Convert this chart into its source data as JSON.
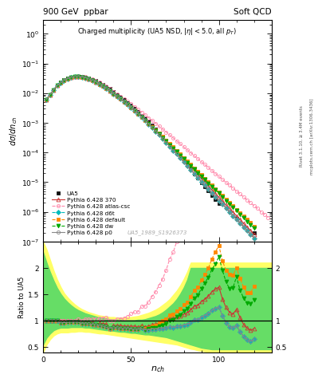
{
  "title_left": "900 GeV  ppbar",
  "title_right": "Soft QCD",
  "plot_title": "Charged multiplicity (UA5 NSD, |\\eta| < 5.0, all p_{T})",
  "ylabel_main": "d\\sigma/dn_{ch}",
  "ylabel_ratio": "Ratio to UA5",
  "xlabel": "n_{ch}",
  "watermark": "UA5_1989_S1926373",
  "right_label1": "Rivet 3.1.10, ≥ 3.4M events",
  "right_label2": "mcplots.cern.ch [arXiv:1306.3436]",
  "ylim_main": [
    1e-07,
    3.0
  ],
  "xlim": [
    0,
    130
  ],
  "series": [
    {
      "label": "UA5",
      "color": "#111111",
      "marker": "s",
      "ms": 3.5,
      "linestyle": "none",
      "filled": true,
      "lw": 0.8,
      "x": [
        2,
        4,
        6,
        8,
        10,
        12,
        14,
        16,
        18,
        20,
        22,
        24,
        26,
        28,
        30,
        32,
        34,
        36,
        38,
        40,
        42,
        44,
        46,
        48,
        50,
        52,
        54,
        56,
        58,
        60,
        62,
        64,
        66,
        68,
        70,
        72,
        74,
        76,
        78,
        80,
        82,
        84,
        86,
        88,
        90,
        92,
        94,
        96,
        98,
        100,
        110,
        120
      ],
      "y": [
        0.0062,
        0.009,
        0.013,
        0.018,
        0.023,
        0.028,
        0.032,
        0.035,
        0.037,
        0.037,
        0.037,
        0.035,
        0.032,
        0.029,
        0.026,
        0.022,
        0.019,
        0.016,
        0.014,
        0.011,
        0.009,
        0.0074,
        0.006,
        0.0048,
        0.0038,
        0.003,
        0.0024,
        0.0018,
        0.00145,
        0.0011,
        0.00082,
        0.00062,
        0.00046,
        0.00034,
        0.00025,
        0.00018,
        0.000135,
        9.8e-05,
        7.2e-05,
        5.2e-05,
        3.8e-05,
        2.7e-05,
        1.9e-05,
        1.4e-05,
        9.9e-06,
        7.1e-06,
        5.1e-06,
        3.6e-06,
        2.6e-06,
        1.9e-06,
        6e-07,
        2e-07
      ]
    },
    {
      "label": "Pythia 6.428 370",
      "color": "#CC3333",
      "marker": "^",
      "ms": 3.5,
      "linestyle": "-",
      "filled": false,
      "lw": 0.8,
      "x": [
        2,
        4,
        6,
        8,
        10,
        12,
        14,
        16,
        18,
        20,
        22,
        24,
        26,
        28,
        30,
        32,
        34,
        36,
        38,
        40,
        42,
        44,
        46,
        48,
        50,
        52,
        54,
        56,
        58,
        60,
        62,
        64,
        66,
        68,
        70,
        72,
        74,
        76,
        78,
        80,
        82,
        84,
        86,
        88,
        90,
        92,
        94,
        96,
        98,
        100,
        102,
        104,
        106,
        108,
        110,
        112,
        114,
        116,
        118,
        120
      ],
      "y": [
        0.0062,
        0.009,
        0.013,
        0.018,
        0.023,
        0.028,
        0.032,
        0.035,
        0.037,
        0.037,
        0.036,
        0.034,
        0.031,
        0.028,
        0.024,
        0.021,
        0.018,
        0.015,
        0.012,
        0.01,
        0.0082,
        0.0067,
        0.0054,
        0.0043,
        0.0034,
        0.0027,
        0.0021,
        0.00165,
        0.00128,
        0.00099,
        0.00076,
        0.00058,
        0.00044,
        0.00033,
        0.00025,
        0.000188,
        0.000141,
        0.000105,
        7.85e-05,
        5.86e-05,
        4.37e-05,
        3.26e-05,
        2.43e-05,
        1.81e-05,
        1.35e-05,
        1e-05,
        7.48e-06,
        5.57e-06,
        4.16e-06,
        3.11e-06,
        2.32e-06,
        1.73e-06,
        1.3e-06,
        9.7e-07,
        7.3e-07,
        5.5e-07,
        4.1e-07,
        3.1e-07,
        2.3e-07,
        1.7e-07
      ]
    },
    {
      "label": "Pythia 6.428 atlas-csc",
      "color": "#FF88AA",
      "marker": "o",
      "ms": 3.0,
      "linestyle": "--",
      "filled": false,
      "lw": 0.8,
      "x": [
        2,
        4,
        6,
        8,
        10,
        12,
        14,
        16,
        18,
        20,
        22,
        24,
        26,
        28,
        30,
        32,
        34,
        36,
        38,
        40,
        42,
        44,
        46,
        48,
        50,
        52,
        54,
        56,
        58,
        60,
        62,
        64,
        66,
        68,
        70,
        72,
        74,
        76,
        78,
        80,
        82,
        84,
        86,
        88,
        90,
        92,
        94,
        96,
        98,
        100,
        102,
        104,
        106,
        108,
        110,
        112,
        114,
        116,
        118,
        120,
        122,
        124,
        126,
        128
      ],
      "y": [
        0.0062,
        0.009,
        0.013,
        0.018,
        0.023,
        0.028,
        0.032,
        0.035,
        0.037,
        0.038,
        0.037,
        0.036,
        0.033,
        0.03,
        0.027,
        0.023,
        0.02,
        0.017,
        0.014,
        0.011,
        0.0093,
        0.0077,
        0.0063,
        0.0052,
        0.0043,
        0.0035,
        0.0028,
        0.0023,
        0.00185,
        0.00149,
        0.0012,
        0.00096,
        0.00077,
        0.00061,
        0.00049,
        0.00039,
        0.00031,
        0.000245,
        0.000195,
        0.000155,
        0.000123,
        9.78e-05,
        7.77e-05,
        6.17e-05,
        4.91e-05,
        3.9e-05,
        3.1e-05,
        2.47e-05,
        1.96e-05,
        1.56e-05,
        1.24e-05,
        9.9e-06,
        7.9e-06,
        6.3e-06,
        5e-06,
        4e-06,
        3.2e-06,
        2.5e-06,
        2e-06,
        1.6e-06,
        1.3e-06,
        1e-06,
        8.2e-07,
        6.5e-07
      ]
    },
    {
      "label": "Pythia 6.428 d6t",
      "color": "#00BBBB",
      "marker": "D",
      "ms": 3.0,
      "linestyle": "--",
      "filled": true,
      "lw": 0.8,
      "x": [
        2,
        4,
        6,
        8,
        10,
        12,
        14,
        16,
        18,
        20,
        22,
        24,
        26,
        28,
        30,
        32,
        34,
        36,
        38,
        40,
        42,
        44,
        46,
        48,
        50,
        52,
        54,
        56,
        58,
        60,
        62,
        64,
        66,
        68,
        70,
        72,
        74,
        76,
        78,
        80,
        82,
        84,
        86,
        88,
        90,
        92,
        94,
        96,
        98,
        100,
        102,
        104,
        106,
        108,
        110,
        112,
        114,
        116,
        118,
        120
      ],
      "y": [
        0.0062,
        0.009,
        0.013,
        0.018,
        0.022,
        0.027,
        0.031,
        0.034,
        0.036,
        0.036,
        0.035,
        0.033,
        0.03,
        0.027,
        0.024,
        0.02,
        0.017,
        0.014,
        0.012,
        0.0095,
        0.0078,
        0.0063,
        0.0051,
        0.0041,
        0.0032,
        0.0025,
        0.002,
        0.00155,
        0.0012,
        0.00091,
        0.00069,
        0.00052,
        0.00039,
        0.00029,
        0.000215,
        0.00016,
        0.000118,
        8.74e-05,
        6.46e-05,
        4.78e-05,
        3.54e-05,
        2.61e-05,
        1.93e-05,
        1.43e-05,
        1.06e-05,
        7.8e-06,
        5.8e-06,
        4.3e-06,
        3.2e-06,
        2.4e-06,
        1.8e-06,
        1.33e-06,
        9.9e-07,
        7.4e-07,
        5.5e-07,
        4.1e-07,
        3.1e-07,
        2.3e-07,
        1.7e-07,
        1.3e-07
      ]
    },
    {
      "label": "Pythia 6.428 default",
      "color": "#FF8800",
      "marker": "s",
      "ms": 3.0,
      "linestyle": "--",
      "filled": true,
      "lw": 0.8,
      "x": [
        2,
        4,
        6,
        8,
        10,
        12,
        14,
        16,
        18,
        20,
        22,
        24,
        26,
        28,
        30,
        32,
        34,
        36,
        38,
        40,
        42,
        44,
        46,
        48,
        50,
        52,
        54,
        56,
        58,
        60,
        62,
        64,
        66,
        68,
        70,
        72,
        74,
        76,
        78,
        80,
        82,
        84,
        86,
        88,
        90,
        92,
        94,
        96,
        98,
        100,
        102,
        104,
        106,
        108,
        110,
        112,
        114,
        116,
        118,
        120
      ],
      "y": [
        0.0062,
        0.009,
        0.013,
        0.018,
        0.022,
        0.027,
        0.031,
        0.034,
        0.036,
        0.036,
        0.035,
        0.033,
        0.03,
        0.027,
        0.024,
        0.02,
        0.017,
        0.014,
        0.012,
        0.0095,
        0.0078,
        0.0063,
        0.0051,
        0.0041,
        0.0032,
        0.0025,
        0.002,
        0.00158,
        0.00123,
        0.00096,
        0.00074,
        0.00057,
        0.00044,
        0.00034,
        0.00026,
        0.000199,
        0.000152,
        0.000116,
        8.85e-05,
        6.75e-05,
        5.15e-05,
        3.93e-05,
        3e-05,
        2.29e-05,
        1.75e-05,
        1.33e-05,
        1.02e-05,
        7.8e-06,
        6e-06,
        4.6e-06,
        3.5e-06,
        2.7e-06,
        2.1e-06,
        1.6e-06,
        1.2e-06,
        9.4e-07,
        7.2e-07,
        5.5e-07,
        4.3e-07,
        3.3e-07
      ]
    },
    {
      "label": "Pythia 6.428 dw",
      "color": "#00AA00",
      "marker": "v",
      "ms": 3.5,
      "linestyle": "--",
      "filled": true,
      "lw": 0.8,
      "x": [
        2,
        4,
        6,
        8,
        10,
        12,
        14,
        16,
        18,
        20,
        22,
        24,
        26,
        28,
        30,
        32,
        34,
        36,
        38,
        40,
        42,
        44,
        46,
        48,
        50,
        52,
        54,
        56,
        58,
        60,
        62,
        64,
        66,
        68,
        70,
        72,
        74,
        76,
        78,
        80,
        82,
        84,
        86,
        88,
        90,
        92,
        94,
        96,
        98,
        100,
        102,
        104,
        106,
        108,
        110,
        112,
        114,
        116,
        118,
        120
      ],
      "y": [
        0.0062,
        0.009,
        0.013,
        0.018,
        0.022,
        0.027,
        0.031,
        0.034,
        0.036,
        0.036,
        0.035,
        0.033,
        0.03,
        0.027,
        0.024,
        0.02,
        0.017,
        0.014,
        0.012,
        0.0095,
        0.0078,
        0.0063,
        0.0051,
        0.0041,
        0.0032,
        0.0025,
        0.002,
        0.00155,
        0.0012,
        0.00093,
        0.00071,
        0.00054,
        0.00041,
        0.00031,
        0.000237,
        0.000181,
        0.000138,
        0.000105,
        8.03e-05,
        6.12e-05,
        4.67e-05,
        3.57e-05,
        2.72e-05,
        2.08e-05,
        1.59e-05,
        1.22e-05,
        9.3e-06,
        7.1e-06,
        5.4e-06,
        4.2e-06,
        3.2e-06,
        2.4e-06,
        1.8e-06,
        1.4e-06,
        1.1e-06,
        8.2e-07,
        6.3e-07,
        4.8e-07,
        3.7e-07,
        2.8e-07
      ]
    },
    {
      "label": "Pythia 6.428 p0",
      "color": "#888888",
      "marker": "o",
      "ms": 3.0,
      "linestyle": "-",
      "filled": false,
      "lw": 0.8,
      "x": [
        2,
        4,
        6,
        8,
        10,
        12,
        14,
        16,
        18,
        20,
        22,
        24,
        26,
        28,
        30,
        32,
        34,
        36,
        38,
        40,
        42,
        44,
        46,
        48,
        50,
        52,
        54,
        56,
        58,
        60,
        62,
        64,
        66,
        68,
        70,
        72,
        74,
        76,
        78,
        80,
        82,
        84,
        86,
        88,
        90,
        92,
        94,
        96,
        98,
        100,
        102,
        104,
        106,
        108,
        110,
        112,
        114,
        116,
        118,
        120
      ],
      "y": [
        0.0062,
        0.009,
        0.013,
        0.018,
        0.022,
        0.027,
        0.031,
        0.034,
        0.036,
        0.036,
        0.035,
        0.033,
        0.03,
        0.027,
        0.024,
        0.02,
        0.017,
        0.014,
        0.012,
        0.0095,
        0.0078,
        0.0063,
        0.0051,
        0.0041,
        0.0032,
        0.0025,
        0.002,
        0.00155,
        0.0012,
        0.00091,
        0.00069,
        0.00052,
        0.00039,
        0.00029,
        0.000215,
        0.00016,
        0.000118,
        8.74e-05,
        6.46e-05,
        4.78e-05,
        3.54e-05,
        2.61e-05,
        1.93e-05,
        1.43e-05,
        1.06e-05,
        7.8e-06,
        5.8e-06,
        4.3e-06,
        3.2e-06,
        2.4e-06,
        1.8e-06,
        1.33e-06,
        9.9e-07,
        7.4e-07,
        5.5e-07,
        4.1e-07,
        3.1e-07,
        2.3e-07,
        1.7e-07,
        1.3e-07
      ]
    }
  ],
  "band_yellow_x": [
    0,
    2,
    4,
    6,
    8,
    10,
    12,
    14,
    16,
    18,
    20,
    22,
    24,
    26,
    28,
    30,
    32,
    34,
    36,
    38,
    40,
    42,
    44,
    46,
    48,
    50,
    52,
    54,
    56,
    58,
    60,
    62,
    64,
    66,
    68,
    70,
    72,
    74,
    76,
    78,
    80,
    82,
    84,
    86,
    88,
    90,
    92,
    94,
    96,
    98,
    100,
    102,
    104,
    130
  ],
  "band_yellow_lo": [
    0.4,
    0.55,
    0.65,
    0.72,
    0.76,
    0.78,
    0.78,
    0.78,
    0.79,
    0.79,
    0.8,
    0.8,
    0.79,
    0.79,
    0.78,
    0.77,
    0.76,
    0.76,
    0.75,
    0.74,
    0.73,
    0.72,
    0.71,
    0.7,
    0.69,
    0.68,
    0.67,
    0.66,
    0.65,
    0.64,
    0.63,
    0.62,
    0.61,
    0.6,
    0.59,
    0.58,
    0.57,
    0.56,
    0.55,
    0.53,
    0.51,
    0.49,
    0.47,
    0.46,
    0.44,
    0.43,
    0.42,
    0.41,
    0.41,
    0.41,
    0.41,
    0.41,
    0.41,
    0.41
  ],
  "band_yellow_hi": [
    2.5,
    2.35,
    2.15,
    1.95,
    1.78,
    1.64,
    1.52,
    1.44,
    1.37,
    1.31,
    1.26,
    1.22,
    1.19,
    1.16,
    1.14,
    1.12,
    1.1,
    1.09,
    1.08,
    1.07,
    1.07,
    1.06,
    1.06,
    1.06,
    1.07,
    1.07,
    1.08,
    1.09,
    1.11,
    1.13,
    1.15,
    1.18,
    1.21,
    1.25,
    1.3,
    1.35,
    1.41,
    1.49,
    1.57,
    1.67,
    1.79,
    1.93,
    2.1,
    2.1,
    2.1,
    2.1,
    2.1,
    2.1,
    2.1,
    2.1,
    2.1,
    2.1,
    2.1,
    2.1
  ],
  "band_green_x": [
    0,
    2,
    4,
    6,
    8,
    10,
    12,
    14,
    16,
    18,
    20,
    22,
    24,
    26,
    28,
    30,
    32,
    34,
    36,
    38,
    40,
    42,
    44,
    46,
    48,
    50,
    52,
    54,
    56,
    58,
    60,
    62,
    64,
    66,
    68,
    70,
    72,
    74,
    76,
    78,
    80,
    82,
    84,
    86,
    88,
    90,
    92,
    94,
    96,
    98,
    100,
    102,
    104,
    130
  ],
  "band_green_lo": [
    0.55,
    0.68,
    0.76,
    0.82,
    0.85,
    0.87,
    0.87,
    0.87,
    0.88,
    0.88,
    0.88,
    0.88,
    0.87,
    0.87,
    0.86,
    0.85,
    0.84,
    0.83,
    0.82,
    0.82,
    0.81,
    0.8,
    0.79,
    0.79,
    0.78,
    0.77,
    0.77,
    0.76,
    0.75,
    0.74,
    0.74,
    0.73,
    0.72,
    0.71,
    0.7,
    0.69,
    0.67,
    0.65,
    0.63,
    0.61,
    0.59,
    0.57,
    0.55,
    0.53,
    0.51,
    0.49,
    0.48,
    0.47,
    0.46,
    0.46,
    0.46,
    0.46,
    0.46,
    0.46
  ],
  "band_green_hi": [
    2.3,
    2.1,
    1.92,
    1.76,
    1.62,
    1.51,
    1.42,
    1.35,
    1.29,
    1.24,
    1.2,
    1.17,
    1.14,
    1.12,
    1.1,
    1.08,
    1.06,
    1.05,
    1.04,
    1.03,
    1.02,
    1.02,
    1.02,
    1.01,
    1.01,
    1.01,
    1.01,
    1.02,
    1.02,
    1.03,
    1.05,
    1.07,
    1.09,
    1.12,
    1.16,
    1.21,
    1.27,
    1.33,
    1.41,
    1.51,
    1.63,
    1.78,
    2.0,
    2.0,
    2.0,
    2.0,
    2.0,
    2.0,
    2.0,
    2.0,
    2.0,
    2.0,
    2.0,
    2.0
  ]
}
